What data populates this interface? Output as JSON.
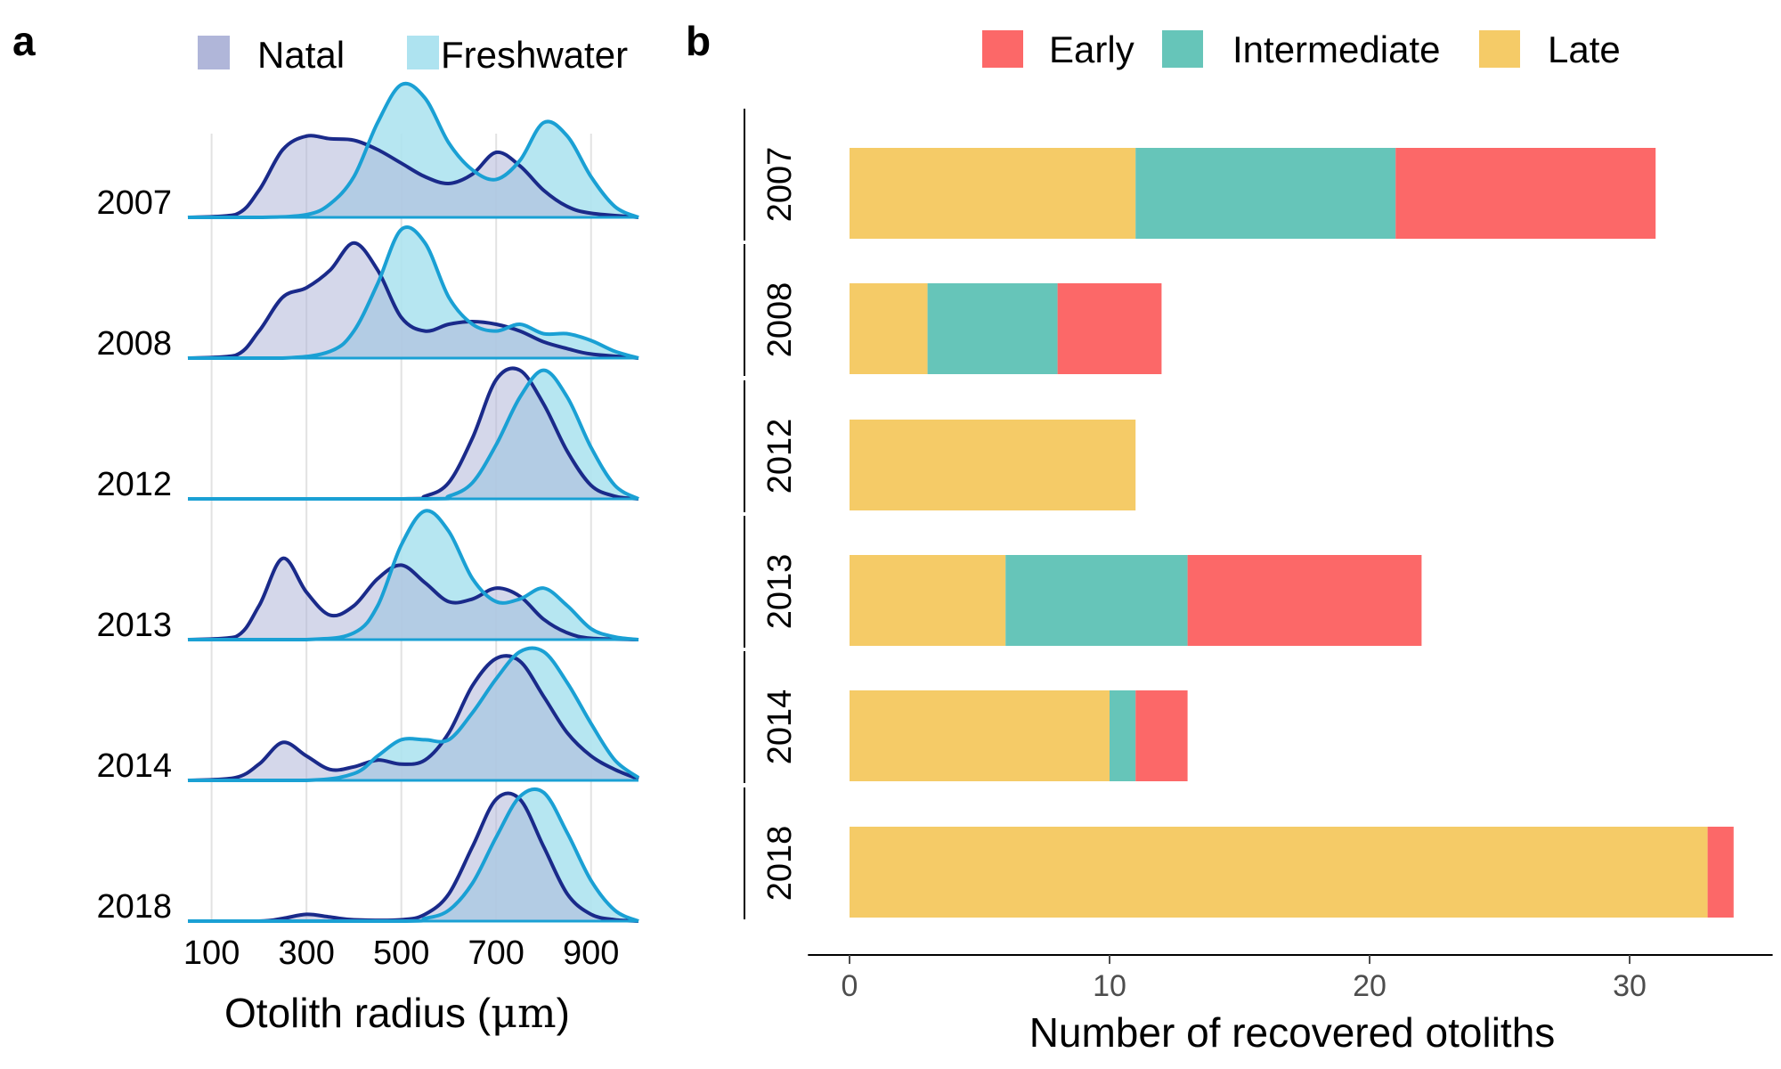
{
  "panel_a": {
    "letter": "a",
    "legend": [
      {
        "label": "Natal",
        "fill": "#b0b6d9",
        "stroke": "#1a2a8a"
      },
      {
        "label": "Freshwater",
        "fill": "#aee3f0",
        "stroke": "#1aa0d4"
      }
    ],
    "xlabel_pre": "Otolith radius (",
    "xlabel_unit": "μm",
    "xlabel_post": ")"
  },
  "panel_b": {
    "letter": "b",
    "legend": [
      {
        "label": "Early",
        "color": "#fc6868"
      },
      {
        "label": "Intermediate",
        "color": "#66c5b9"
      },
      {
        "label": "Late",
        "color": "#f5cb67"
      }
    ],
    "xlabel": "Number of recovered otoliths"
  },
  "chart_data": [
    {
      "type": "area",
      "title": "",
      "xlabel": "Otolith radius (μm)",
      "xlim": [
        50,
        1000
      ],
      "xticks": [
        100,
        300,
        500,
        700,
        900
      ],
      "grid": true,
      "legend_position": "top",
      "series_names": [
        "Natal",
        "Freshwater"
      ],
      "groups": [
        {
          "year": "2007",
          "natal": [
            [
              50,
              0
            ],
            [
              150,
              0.02
            ],
            [
              200,
              0.2
            ],
            [
              250,
              0.5
            ],
            [
              300,
              0.6
            ],
            [
              350,
              0.58
            ],
            [
              400,
              0.57
            ],
            [
              450,
              0.5
            ],
            [
              500,
              0.4
            ],
            [
              550,
              0.3
            ],
            [
              600,
              0.25
            ],
            [
              650,
              0.32
            ],
            [
              700,
              0.48
            ],
            [
              750,
              0.38
            ],
            [
              800,
              0.2
            ],
            [
              850,
              0.08
            ],
            [
              900,
              0.03
            ],
            [
              1000,
              0
            ]
          ],
          "freshwater": [
            [
              50,
              0
            ],
            [
              200,
              0
            ],
            [
              300,
              0.02
            ],
            [
              350,
              0.1
            ],
            [
              400,
              0.3
            ],
            [
              450,
              0.7
            ],
            [
              500,
              0.98
            ],
            [
              550,
              0.88
            ],
            [
              600,
              0.55
            ],
            [
              650,
              0.35
            ],
            [
              700,
              0.28
            ],
            [
              750,
              0.42
            ],
            [
              800,
              0.7
            ],
            [
              850,
              0.6
            ],
            [
              900,
              0.3
            ],
            [
              950,
              0.08
            ],
            [
              1000,
              0
            ]
          ]
        },
        {
          "year": "2008",
          "natal": [
            [
              50,
              0
            ],
            [
              150,
              0.02
            ],
            [
              200,
              0.2
            ],
            [
              250,
              0.45
            ],
            [
              300,
              0.52
            ],
            [
              350,
              0.65
            ],
            [
              400,
              0.85
            ],
            [
              450,
              0.65
            ],
            [
              500,
              0.3
            ],
            [
              550,
              0.2
            ],
            [
              600,
              0.25
            ],
            [
              650,
              0.27
            ],
            [
              700,
              0.25
            ],
            [
              750,
              0.2
            ],
            [
              800,
              0.12
            ],
            [
              850,
              0.07
            ],
            [
              900,
              0.03
            ],
            [
              1000,
              0
            ]
          ],
          "freshwater": [
            [
              50,
              0
            ],
            [
              250,
              0
            ],
            [
              350,
              0.05
            ],
            [
              400,
              0.2
            ],
            [
              450,
              0.55
            ],
            [
              500,
              0.95
            ],
            [
              550,
              0.85
            ],
            [
              600,
              0.45
            ],
            [
              650,
              0.25
            ],
            [
              700,
              0.2
            ],
            [
              750,
              0.25
            ],
            [
              800,
              0.18
            ],
            [
              850,
              0.18
            ],
            [
              900,
              0.13
            ],
            [
              950,
              0.05
            ],
            [
              1000,
              0
            ]
          ]
        },
        {
          "year": "2012",
          "natal": [
            [
              50,
              0
            ],
            [
              500,
              0
            ],
            [
              550,
              0.02
            ],
            [
              600,
              0.12
            ],
            [
              650,
              0.45
            ],
            [
              700,
              0.88
            ],
            [
              750,
              0.95
            ],
            [
              800,
              0.7
            ],
            [
              850,
              0.35
            ],
            [
              900,
              0.1
            ],
            [
              950,
              0.02
            ],
            [
              1000,
              0
            ]
          ],
          "freshwater": [
            [
              50,
              0
            ],
            [
              550,
              0
            ],
            [
              600,
              0.02
            ],
            [
              650,
              0.12
            ],
            [
              700,
              0.4
            ],
            [
              750,
              0.75
            ],
            [
              800,
              0.95
            ],
            [
              850,
              0.75
            ],
            [
              900,
              0.38
            ],
            [
              950,
              0.1
            ],
            [
              1000,
              0
            ]
          ]
        },
        {
          "year": "2013",
          "natal": [
            [
              50,
              0
            ],
            [
              150,
              0.02
            ],
            [
              200,
              0.25
            ],
            [
              250,
              0.6
            ],
            [
              300,
              0.35
            ],
            [
              350,
              0.18
            ],
            [
              400,
              0.25
            ],
            [
              450,
              0.45
            ],
            [
              500,
              0.55
            ],
            [
              550,
              0.42
            ],
            [
              600,
              0.28
            ],
            [
              650,
              0.3
            ],
            [
              700,
              0.38
            ],
            [
              750,
              0.32
            ],
            [
              800,
              0.15
            ],
            [
              850,
              0.05
            ],
            [
              900,
              0.01
            ],
            [
              1000,
              0
            ]
          ],
          "freshwater": [
            [
              50,
              0
            ],
            [
              300,
              0
            ],
            [
              400,
              0.05
            ],
            [
              450,
              0.25
            ],
            [
              500,
              0.7
            ],
            [
              550,
              0.95
            ],
            [
              600,
              0.8
            ],
            [
              650,
              0.45
            ],
            [
              700,
              0.28
            ],
            [
              750,
              0.3
            ],
            [
              800,
              0.38
            ],
            [
              850,
              0.25
            ],
            [
              900,
              0.08
            ],
            [
              950,
              0.02
            ],
            [
              1000,
              0
            ]
          ]
        },
        {
          "year": "2014",
          "natal": [
            [
              50,
              0
            ],
            [
              150,
              0.02
            ],
            [
              200,
              0.12
            ],
            [
              250,
              0.28
            ],
            [
              300,
              0.18
            ],
            [
              350,
              0.08
            ],
            [
              400,
              0.1
            ],
            [
              450,
              0.15
            ],
            [
              500,
              0.12
            ],
            [
              550,
              0.15
            ],
            [
              600,
              0.35
            ],
            [
              650,
              0.7
            ],
            [
              700,
              0.9
            ],
            [
              750,
              0.88
            ],
            [
              800,
              0.62
            ],
            [
              850,
              0.35
            ],
            [
              900,
              0.18
            ],
            [
              950,
              0.08
            ],
            [
              1000,
              0.01
            ]
          ],
          "freshwater": [
            [
              50,
              0
            ],
            [
              300,
              0
            ],
            [
              400,
              0.05
            ],
            [
              450,
              0.18
            ],
            [
              500,
              0.3
            ],
            [
              550,
              0.3
            ],
            [
              600,
              0.3
            ],
            [
              650,
              0.5
            ],
            [
              700,
              0.75
            ],
            [
              750,
              0.95
            ],
            [
              800,
              0.95
            ],
            [
              850,
              0.72
            ],
            [
              900,
              0.42
            ],
            [
              950,
              0.15
            ],
            [
              1000,
              0.02
            ]
          ]
        },
        {
          "year": "2018",
          "natal": [
            [
              50,
              0
            ],
            [
              200,
              0
            ],
            [
              250,
              0.02
            ],
            [
              300,
              0.05
            ],
            [
              350,
              0.03
            ],
            [
              400,
              0.01
            ],
            [
              500,
              0.01
            ],
            [
              550,
              0.05
            ],
            [
              600,
              0.2
            ],
            [
              650,
              0.55
            ],
            [
              700,
              0.9
            ],
            [
              750,
              0.9
            ],
            [
              800,
              0.55
            ],
            [
              850,
              0.2
            ],
            [
              900,
              0.05
            ],
            [
              950,
              0.01
            ],
            [
              1000,
              0
            ]
          ],
          "freshwater": [
            [
              50,
              0
            ],
            [
              500,
              0
            ],
            [
              550,
              0.02
            ],
            [
              600,
              0.08
            ],
            [
              650,
              0.28
            ],
            [
              700,
              0.62
            ],
            [
              750,
              0.92
            ],
            [
              800,
              0.95
            ],
            [
              850,
              0.65
            ],
            [
              900,
              0.3
            ],
            [
              950,
              0.08
            ],
            [
              1000,
              0
            ]
          ]
        }
      ]
    },
    {
      "type": "bar",
      "orientation": "horizontal",
      "stacked": true,
      "title": "",
      "xlabel": "Number of recovered otoliths",
      "ylabel": "",
      "xlim": [
        -1.6,
        35.5
      ],
      "xticks": [
        0,
        10,
        20,
        30
      ],
      "grid": false,
      "legend_position": "top",
      "stack_order": [
        "Late",
        "Intermediate",
        "Early"
      ],
      "categories": [
        "2007",
        "2008",
        "2012",
        "2013",
        "2014",
        "2018"
      ],
      "series": [
        {
          "name": "Late",
          "values": [
            11,
            3,
            11,
            6,
            10,
            33
          ]
        },
        {
          "name": "Intermediate",
          "values": [
            10,
            5,
            0,
            7,
            1,
            0
          ]
        },
        {
          "name": "Early",
          "values": [
            10,
            4,
            0,
            9,
            2,
            1
          ]
        }
      ]
    }
  ]
}
